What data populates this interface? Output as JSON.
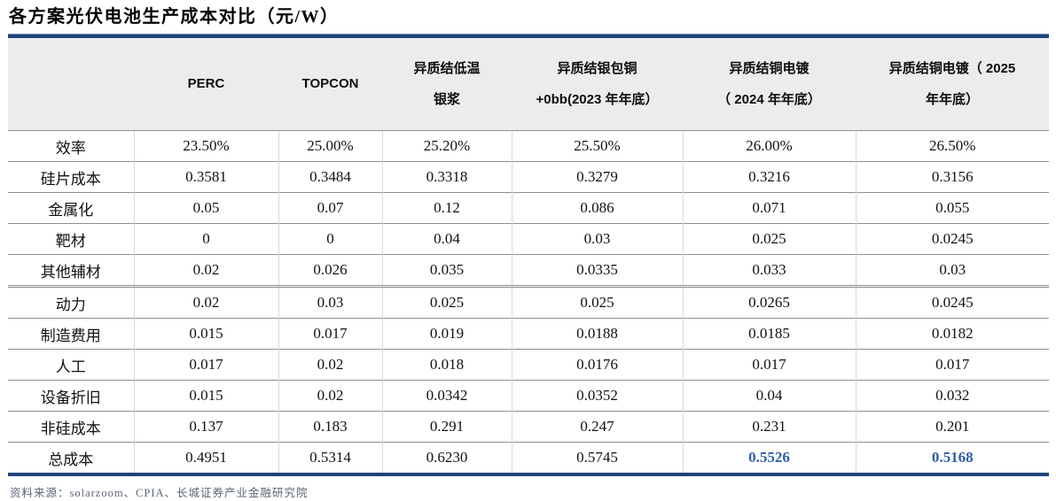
{
  "title": "各方案光伏电池生产成本对比（元/W）",
  "source_note": "资料来源：solarzoom、CPIA、长城证券产业金融研究院",
  "colors": {
    "accent_rule": "#1e4379",
    "header_bg": "#ececec",
    "highlight_value": "#2d5fa7"
  },
  "table": {
    "header": [
      {
        "lines": [
          ""
        ]
      },
      {
        "lines": [
          "PERC"
        ]
      },
      {
        "lines": [
          "TOPCON"
        ]
      },
      {
        "lines": [
          "异质结低温",
          "银浆"
        ]
      },
      {
        "lines": [
          "异质结银包铜",
          "+0bb(2023 年年底）"
        ]
      },
      {
        "lines": [
          "异质结铜电镀",
          "（ 2024 年年底）"
        ]
      },
      {
        "lines": [
          "异质结铜电镀（ 2025",
          "年年底）"
        ]
      }
    ],
    "rows": [
      {
        "label": "效率",
        "values": [
          "23.50%",
          "25.00%",
          "25.20%",
          "25.50%",
          "26.00%",
          "26.50%"
        ]
      },
      {
        "label": "硅片成本",
        "values": [
          "0.3581",
          "0.3484",
          "0.3318",
          "0.3279",
          "0.3216",
          "0.3156"
        ]
      },
      {
        "label": "金属化",
        "values": [
          "0.05",
          "0.07",
          "0.12",
          "0.086",
          "0.071",
          "0.055"
        ]
      },
      {
        "label": "靶材",
        "values": [
          "0",
          "0",
          "0.04",
          "0.03",
          "0.025",
          "0.0245"
        ]
      },
      {
        "label": "其他辅材",
        "values": [
          "0.02",
          "0.026",
          "0.035",
          "0.0335",
          "0.033",
          "0.03"
        ]
      },
      {
        "label": "动力",
        "values": [
          "0.02",
          "0.03",
          "0.025",
          "0.025",
          "0.0265",
          "0.0245"
        ],
        "thick_top": true
      },
      {
        "label": "制造费用",
        "values": [
          "0.015",
          "0.017",
          "0.019",
          "0.0188",
          "0.0185",
          "0.0182"
        ]
      },
      {
        "label": "人工",
        "values": [
          "0.017",
          "0.02",
          "0.018",
          "0.0176",
          "0.017",
          "0.017"
        ]
      },
      {
        "label": "设备折旧",
        "values": [
          "0.015",
          "0.02",
          "0.0342",
          "0.0352",
          "0.04",
          "0.032"
        ]
      },
      {
        "label": "非硅成本",
        "values": [
          "0.137",
          "0.183",
          "0.291",
          "0.247",
          "0.231",
          "0.201"
        ]
      },
      {
        "label": "总成本",
        "values": [
          "0.4951",
          "0.5314",
          "0.6230",
          "0.5745",
          "0.5526",
          "0.5168"
        ],
        "highlight_cols": [
          4,
          5
        ]
      }
    ]
  }
}
